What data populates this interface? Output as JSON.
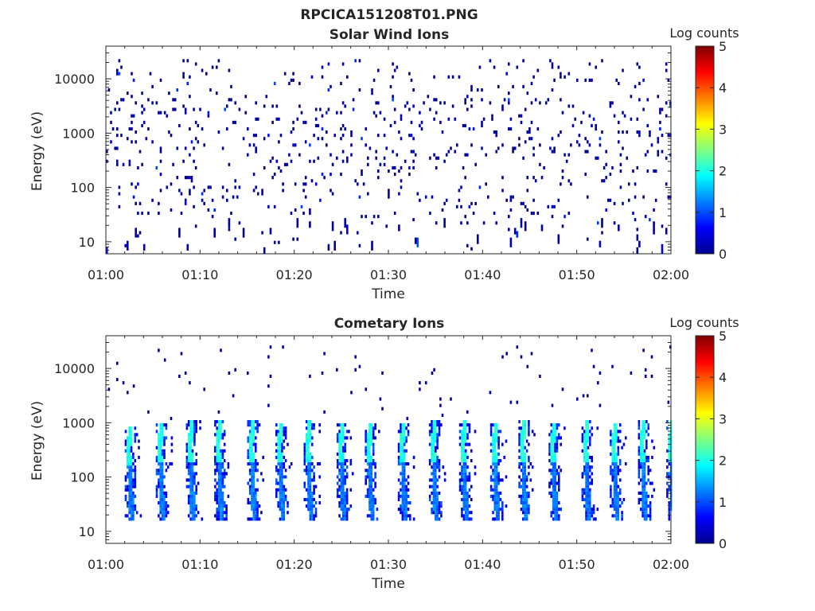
{
  "figure": {
    "title": "RPCICA151208T01.PNG"
  },
  "chart_data": [
    {
      "type": "heatmap",
      "title": "Solar Wind Ions",
      "xlabel": "Time",
      "ylabel": "Energy (eV)",
      "xlim": [
        "01:00",
        "02:00"
      ],
      "ylim": [
        6,
        40000
      ],
      "yscale": "log",
      "x_ticks": [
        "01:00",
        "01:10",
        "01:20",
        "01:30",
        "01:40",
        "01:50",
        "02:00"
      ],
      "y_ticks": [
        "10",
        "100",
        "1000",
        "10000"
      ],
      "colorbar": {
        "label": "Log counts",
        "range": [
          0,
          5
        ],
        "ticks": [
          "0",
          "1",
          "2",
          "3",
          "4",
          "5"
        ],
        "colormap": "jet"
      },
      "description_of_values": "Sparse scattered counts mostly at log count 0-0.3 (dark blue) across all energies 6 eV - 20 keV; a few isolated cells near log count 1"
    },
    {
      "type": "heatmap",
      "title": "Cometary Ions",
      "xlabel": "Time",
      "ylabel": "Energy (eV)",
      "xlim": [
        "01:00",
        "02:00"
      ],
      "ylim": [
        6,
        40000
      ],
      "yscale": "log",
      "x_ticks": [
        "01:00",
        "01:10",
        "01:20",
        "01:30",
        "01:40",
        "01:50",
        "02:00"
      ],
      "y_ticks": [
        "10",
        "100",
        "1000",
        "10000"
      ],
      "colorbar": {
        "label": "Log counts",
        "range": [
          0,
          5
        ],
        "ticks": [
          "0",
          "1",
          "2",
          "3",
          "4",
          "5"
        ],
        "colormap": "jet"
      },
      "bursts": [
        {
          "start_min": 2.0,
          "high_eV": 700
        },
        {
          "start_min": 5.3,
          "high_eV": 800
        },
        {
          "start_min": 8.5,
          "high_eV": 900
        },
        {
          "start_min": 11.5,
          "high_eV": 1000
        },
        {
          "start_min": 15.0,
          "high_eV": 900
        },
        {
          "start_min": 18.0,
          "high_eV": 850
        },
        {
          "start_min": 21.0,
          "high_eV": 900
        },
        {
          "start_min": 24.5,
          "high_eV": 850
        },
        {
          "start_min": 27.5,
          "high_eV": 800
        },
        {
          "start_min": 31.0,
          "high_eV": 850
        },
        {
          "start_min": 34.3,
          "high_eV": 900
        },
        {
          "start_min": 37.5,
          "high_eV": 950
        },
        {
          "start_min": 40.8,
          "high_eV": 850
        },
        {
          "start_min": 43.8,
          "high_eV": 1000
        },
        {
          "start_min": 47.0,
          "high_eV": 850
        },
        {
          "start_min": 50.5,
          "high_eV": 900
        },
        {
          "start_min": 53.5,
          "high_eV": 850
        },
        {
          "start_min": 56.5,
          "high_eV": 1000
        },
        {
          "start_min": 59.5,
          "high_eV": 900
        }
      ],
      "description_of_values": "Periodic vertical bursts every ~3.2 min; ring-shaped band from ~20 eV up to ~1 keV with log counts up to ~2 (cyan) near 200-800 eV, 0.5-1.5 at lower energies; sparse high-energy counts up to 20 keV"
    }
  ]
}
